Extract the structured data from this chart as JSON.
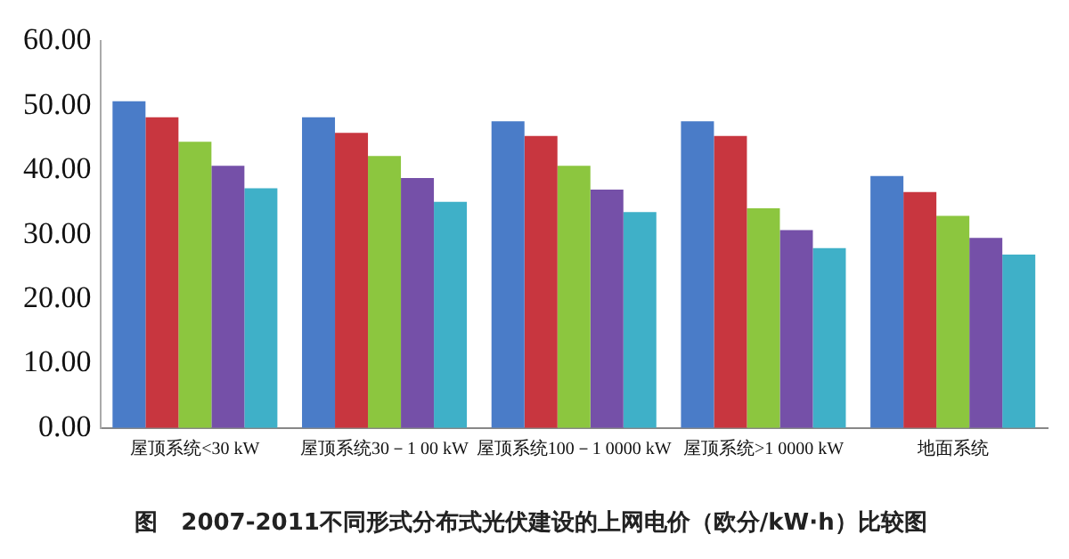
{
  "chart_data": {
    "type": "bar",
    "title": "图　2007-2011不同形式分布式光伏建设的上网电价（欧分/kW·h）比较图",
    "categories": [
      "屋顶系统<30 kW",
      "屋顶系统30－1 00 kW",
      "屋顶系统100－1 0000 kW",
      "屋顶系统>1 0000 kW",
      "地面系统"
    ],
    "series": [
      {
        "color": "#4a7cc8",
        "values": [
          50.7,
          48.2,
          47.6,
          47.6,
          39.1
        ]
      },
      {
        "color": "#c8363f",
        "values": [
          48.2,
          45.8,
          45.3,
          45.3,
          36.6
        ]
      },
      {
        "color": "#8cc63f",
        "values": [
          44.4,
          42.2,
          40.7,
          34.1,
          32.9
        ]
      },
      {
        "color": "#7550a8",
        "values": [
          40.7,
          38.8,
          37.0,
          30.7,
          29.5
        ]
      },
      {
        "color": "#3fb0c8",
        "values": [
          37.2,
          35.1,
          33.5,
          27.9,
          26.9
        ]
      }
    ],
    "ylim": [
      0,
      60
    ],
    "yticks": [
      {
        "value": 0,
        "label": "0.00"
      },
      {
        "value": 10,
        "label": "10.00"
      },
      {
        "value": 20,
        "label": "20.00"
      },
      {
        "value": 30,
        "label": "30.00"
      },
      {
        "value": 40,
        "label": "40.00"
      },
      {
        "value": 50,
        "label": "50.00"
      },
      {
        "value": 60,
        "label": "60.00"
      }
    ],
    "grid": false,
    "legend": false
  }
}
